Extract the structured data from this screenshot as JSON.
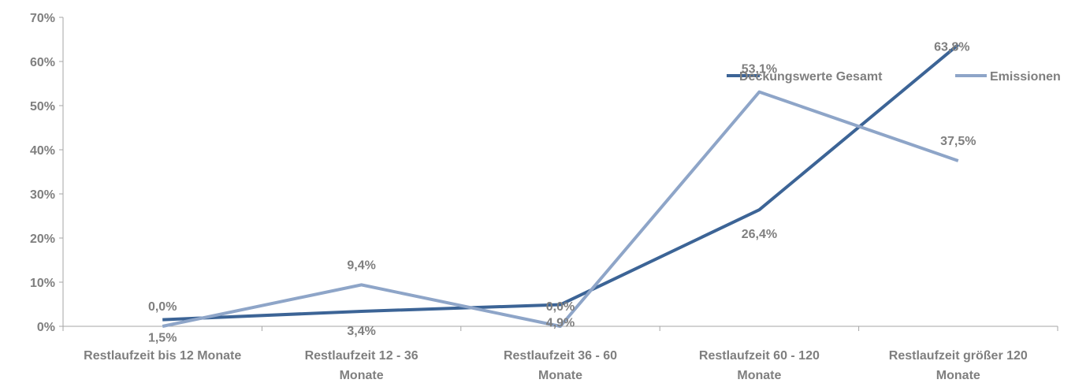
{
  "chart_data": {
    "type": "line",
    "categories": [
      [
        "Restlaufzeit bis 12 Monate"
      ],
      [
        "Restlaufzeit 12 - 36",
        "Monate"
      ],
      [
        "Restlaufzeit 36 - 60",
        "Monate"
      ],
      [
        "Restlaufzeit 60 - 120",
        "Monate"
      ],
      [
        "Restlaufzeit größer 120",
        "Monate"
      ]
    ],
    "series": [
      {
        "name": "Deckungswerte Gesamt",
        "color": "#3c6496",
        "values": [
          1.5,
          3.4,
          4.9,
          26.4,
          63.8
        ],
        "labels": [
          "1,5%",
          "3,4%",
          "4,9%",
          "26,4%",
          "63,8%"
        ]
      },
      {
        "name": "Emissionen",
        "color": "#8ea5c8",
        "values": [
          0.0,
          9.4,
          0.0,
          53.1,
          37.5
        ],
        "labels": [
          "0,0%",
          "9,4%",
          "0,0%",
          "53,1%",
          "37,5%"
        ]
      }
    ],
    "yticks": [
      {
        "value": 0,
        "label": "0%"
      },
      {
        "value": 10,
        "label": "10%"
      },
      {
        "value": 20,
        "label": "20%"
      },
      {
        "value": 30,
        "label": "30%"
      },
      {
        "value": 40,
        "label": "40%"
      },
      {
        "value": 50,
        "label": "50%"
      },
      {
        "value": 60,
        "label": "60%"
      },
      {
        "value": 70,
        "label": "70%"
      }
    ],
    "ylim": [
      0,
      70
    ],
    "title": "",
    "xlabel": "",
    "ylabel": "",
    "grid": false,
    "legend": "top-right"
  }
}
